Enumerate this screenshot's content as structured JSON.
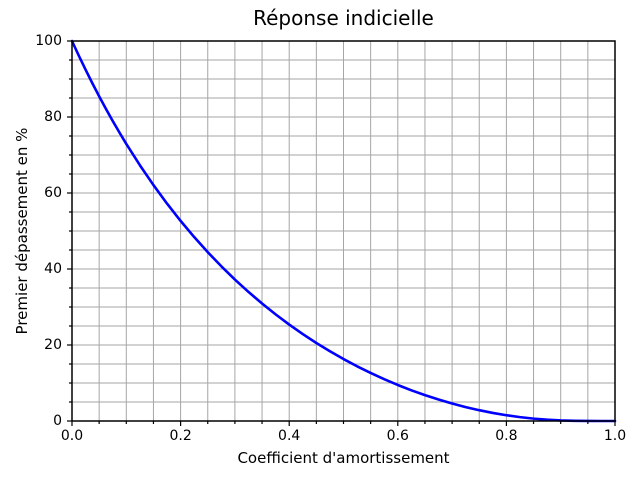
{
  "chart_data": {
    "type": "line",
    "title": "Réponse indicielle",
    "xlabel": "Coefficient d'amortissement",
    "ylabel": "Premier dépassement en %",
    "xlim": [
      0,
      1
    ],
    "ylim": [
      0,
      100
    ],
    "grid": "both",
    "legend": "none",
    "x_tick_values": [
      0,
      0.2,
      0.4,
      0.6,
      0.8,
      1.0
    ],
    "x_tick_labels": [
      "0.0",
      "0.2",
      "0.4",
      "0.6",
      "0.8",
      "1.0"
    ],
    "y_tick_values": [
      0,
      20,
      40,
      60,
      80,
      100
    ],
    "y_tick_labels": [
      "0",
      "20",
      "40",
      "60",
      "80",
      "100"
    ],
    "x_minor_step": 0.05,
    "y_minor_step": 5,
    "colors": {
      "line": "#0000ff",
      "grid": "#a6a6a6",
      "spine": "#000000",
      "text": "#000000",
      "background": "#ffffff"
    },
    "series": [
      {
        "name": "premier-depassement",
        "x": [
          0,
          0.0125,
          0.025,
          0.0375,
          0.05,
          0.0625,
          0.075,
          0.0875,
          0.1,
          0.125,
          0.15,
          0.175,
          0.2,
          0.225,
          0.25,
          0.275,
          0.3,
          0.325,
          0.35,
          0.375,
          0.4,
          0.425,
          0.45,
          0.475,
          0.5,
          0.525,
          0.55,
          0.575,
          0.6,
          0.625,
          0.65,
          0.675,
          0.7,
          0.725,
          0.75,
          0.775,
          0.8,
          0.825,
          0.85,
          0.875,
          0.9,
          0.925,
          0.95,
          0.975,
          1.0
        ],
        "y": [
          100,
          96.15,
          92.44,
          88.88,
          85.45,
          82.14,
          78.96,
          75.89,
          72.92,
          67.31,
          62.09,
          57.21,
          52.66,
          48.41,
          44.43,
          40.72,
          37.23,
          33.97,
          30.91,
          28.06,
          25.38,
          22.88,
          20.53,
          18.35,
          16.3,
          14.4,
          12.64,
          11.0,
          9.48,
          8.08,
          6.81,
          5.65,
          4.6,
          3.66,
          2.84,
          2.12,
          1.52,
          1.02,
          0.63,
          0.34,
          0.15,
          0.05,
          0.01,
          0.0,
          0.0
        ]
      }
    ]
  }
}
